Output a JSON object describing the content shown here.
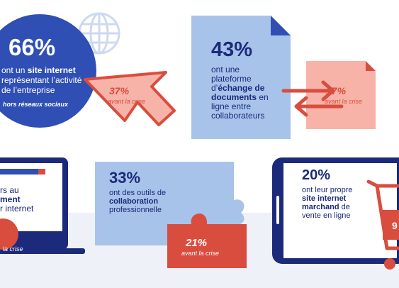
{
  "stat_website": {
    "percent": "66%",
    "line1_pre": "ont un ",
    "line1_bold": "site internet",
    "line2": "représentant l’activité",
    "line3": "de l’entreprise",
    "note": "hors réseaux sociaux",
    "before_percent": "37%",
    "before_label": "avant la crise"
  },
  "stat_platform": {
    "percent": "43%",
    "line1": "ont une",
    "line2": "plateforme",
    "line3_pre": "d’",
    "line3_bold": "échange de",
    "line4_bold": "documents",
    "line4_post": " en",
    "line5": "ligne entre",
    "line6": "collaborateurs",
    "before_percent": "17%",
    "before_label": "avant la crise"
  },
  "stat_left_screen": {
    "line1": "rs au",
    "line2_bold": "ment",
    "line3": "r internet",
    "before_label": "la crise"
  },
  "stat_collab": {
    "percent": "33%",
    "line1": "ont des outils de",
    "line2_bold": "collaboration",
    "line3": "professionnelle",
    "before_percent": "21%",
    "before_label": "avant la crise"
  },
  "stat_shop": {
    "percent": "20%",
    "line1": "ont leur propre",
    "line2_bold": "site internet",
    "line3_bold": "marchand",
    "line3_post": " de",
    "line4": "vente en ligne",
    "cut_digit": "9"
  },
  "colors": {
    "navy": "#1b2a7a",
    "royal_blue": "#2f4fb5",
    "light_blue": "#a7c3ea",
    "coral": "#d94d3e",
    "pink": "#f7b3a8",
    "pale_bg": "#eef1f8"
  }
}
